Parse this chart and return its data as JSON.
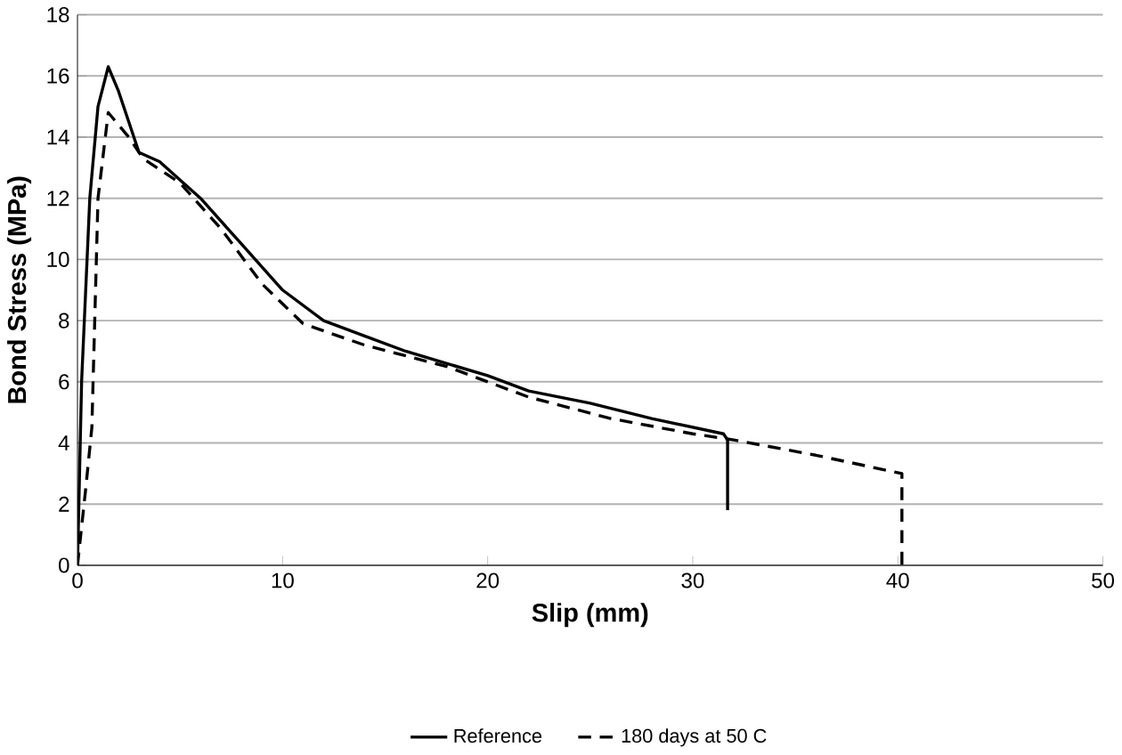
{
  "chart_data": {
    "type": "line",
    "xlabel": "Slip (mm)",
    "ylabel": "Bond Stress (MPa)",
    "xlim": [
      0,
      50
    ],
    "ylim": [
      0,
      18
    ],
    "xticks": [
      0,
      10,
      20,
      30,
      40,
      50
    ],
    "yticks": [
      0,
      2,
      4,
      6,
      8,
      10,
      12,
      14,
      16,
      18
    ],
    "grid": "y",
    "legend": "bottom",
    "marker": "none",
    "series": [
      {
        "name": "Reference",
        "color": "#000000",
        "line_style": "solid",
        "x": [
          0,
          0.2,
          0.6,
          1.0,
          1.5,
          2.0,
          3.0,
          4,
          6,
          8,
          10,
          12,
          14,
          16,
          20,
          22,
          25,
          28,
          31.5,
          31.7,
          31.7
        ],
        "values": [
          0,
          6,
          12,
          15,
          16.3,
          15.5,
          13.5,
          13.2,
          12,
          10.5,
          9,
          8,
          7.5,
          7,
          6.2,
          5.7,
          5.3,
          4.8,
          4.3,
          4.1,
          1.8
        ]
      },
      {
        "name": "180 days at 50 C",
        "color": "#000000",
        "line_style": "dashed",
        "x": [
          0,
          0.4,
          0.7,
          1.0,
          1.5,
          2.5,
          3.2,
          5,
          7,
          9,
          11,
          14,
          18,
          22,
          26,
          30,
          32,
          36,
          40.2,
          40.2
        ],
        "values": [
          0,
          2.5,
          4.5,
          12,
          14.8,
          14,
          13.3,
          12.5,
          11,
          9.2,
          7.9,
          7.2,
          6.5,
          5.5,
          4.8,
          4.3,
          4.1,
          3.6,
          3.0,
          0
        ]
      }
    ]
  }
}
